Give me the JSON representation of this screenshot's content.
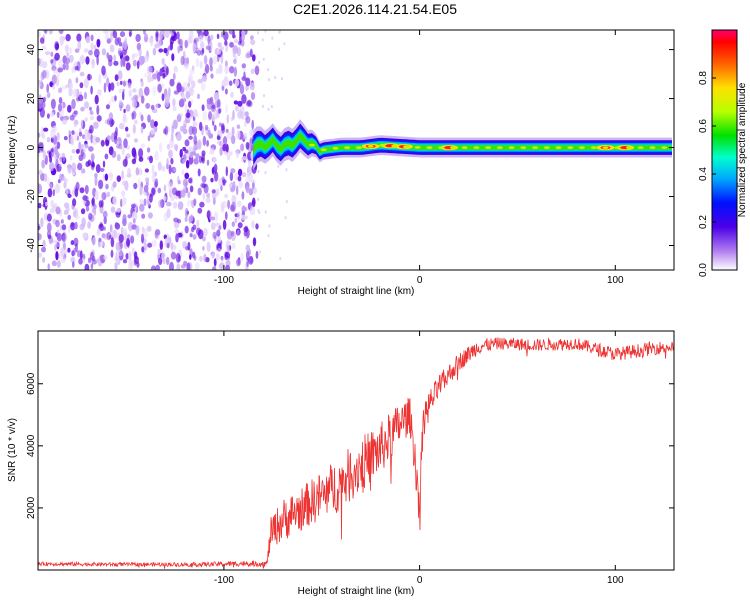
{
  "title": "C2E1.2026.114.21.54.E05",
  "colors": {
    "snr_line": "#ee3333",
    "spectrum_scatter": "#7a2be0",
    "axis": "#000000",
    "background": "#ffffff"
  },
  "chart_data": [
    {
      "type": "heatmap",
      "title": "C2E1.2026.114.21.54.E05",
      "xlabel": "Height of straight line (km)",
      "ylabel": "Frequency (Hz)",
      "xlim": [
        -195,
        130
      ],
      "ylim": [
        -50,
        48
      ],
      "xticks": [
        -100,
        0,
        100
      ],
      "xtick_labels": [
        "-100",
        "0",
        "100"
      ],
      "yticks": [
        -40,
        -20,
        0,
        20,
        40
      ],
      "ytick_labels": [
        "-40",
        "-20",
        "0",
        "20",
        "40"
      ],
      "noise_region_km": [
        -195,
        -83
      ],
      "signal_band": {
        "x": [
          -85,
          -80,
          -75,
          -70,
          -65,
          -60,
          -55,
          -50,
          -40,
          -30,
          -20,
          0,
          30,
          60,
          100,
          130
        ],
        "center_hz": [
          0,
          1,
          2,
          0,
          2,
          4,
          1,
          -1,
          0,
          0,
          1,
          0,
          0,
          0,
          0,
          0
        ],
        "half_width_hz": [
          6,
          5,
          5,
          5,
          5,
          5,
          4,
          3,
          3,
          3,
          3,
          3,
          3,
          3,
          3,
          3
        ]
      },
      "peaks_km": [
        -25,
        -15,
        -8,
        15,
        95,
        105
      ],
      "colorbar": {
        "label": "Normalized spectral amplitude",
        "ticks": [
          0.0,
          0.2,
          0.4,
          0.6,
          0.8
        ],
        "tick_labels": [
          "0.0",
          "0.2",
          "0.4",
          "0.6",
          "0.8"
        ],
        "range": [
          0,
          1
        ]
      }
    },
    {
      "type": "line",
      "xlabel": "Height of straight line (km)",
      "ylabel": "SNR (10 * v/v)",
      "xlim": [
        -195,
        130
      ],
      "ylim": [
        0,
        7700
      ],
      "xticks": [
        -100,
        0,
        100
      ],
      "xtick_labels": [
        "-100",
        "0",
        "100"
      ],
      "yticks": [
        2000,
        4000,
        6000
      ],
      "ytick_labels": [
        "2000",
        "4000",
        "6000"
      ],
      "series": [
        {
          "name": "SNR",
          "x": [
            -195,
            -150,
            -110,
            -90,
            -78,
            -76,
            -70,
            -60,
            -50,
            -40,
            -30,
            -20,
            -15,
            -10,
            -5,
            -3,
            -1,
            0,
            2,
            10,
            20,
            30,
            40,
            60,
            80,
            100,
            120,
            130
          ],
          "values": [
            200,
            180,
            180,
            210,
            200,
            1200,
            1600,
            2000,
            2400,
            2800,
            3400,
            3900,
            4300,
            4700,
            5000,
            4000,
            2800,
            2000,
            5000,
            5900,
            6700,
            7200,
            7300,
            7250,
            7300,
            6950,
            7150,
            7200
          ],
          "noise": [
            60,
            60,
            70,
            90,
            100,
            500,
            700,
            700,
            800,
            900,
            900,
            850,
            800,
            700,
            600,
            700,
            800,
            900,
            500,
            400,
            300,
            250,
            200,
            200,
            200,
            220,
            220,
            200
          ]
        }
      ]
    }
  ]
}
